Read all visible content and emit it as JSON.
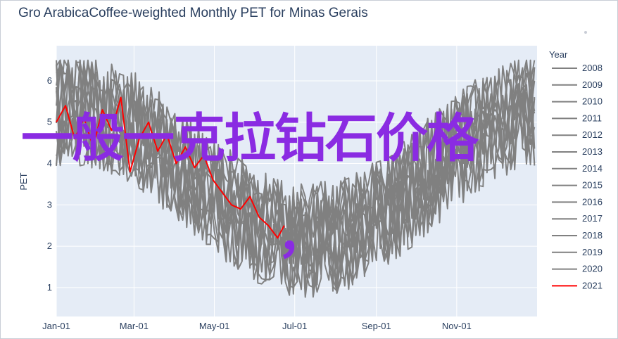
{
  "chart_data": {
    "type": "line",
    "title": "Gro ArabicaCoffee-weighted Monthly PET for Minas Gerais",
    "xlabel": "",
    "ylabel": "PET",
    "x_tick_labels": [
      "Jan-01",
      "Mar-01",
      "May-01",
      "Jul-01",
      "Sep-01",
      "Nov-01"
    ],
    "y_ticks": [
      1,
      2,
      3,
      4,
      5,
      6
    ],
    "ylim": [
      0.3,
      6.85
    ],
    "xlim_days": [
      0,
      365
    ],
    "legend_title": "Year",
    "legend_placement": "right",
    "series": [
      {
        "name": "2008",
        "color": "#808080"
      },
      {
        "name": "2009",
        "color": "#808080"
      },
      {
        "name": "2010",
        "color": "#808080"
      },
      {
        "name": "2011",
        "color": "#808080"
      },
      {
        "name": "2012",
        "color": "#808080"
      },
      {
        "name": "2013",
        "color": "#808080"
      },
      {
        "name": "2014",
        "color": "#808080"
      },
      {
        "name": "2015",
        "color": "#808080"
      },
      {
        "name": "2016",
        "color": "#808080"
      },
      {
        "name": "2017",
        "color": "#808080"
      },
      {
        "name": "2018",
        "color": "#808080"
      },
      {
        "name": "2019",
        "color": "#808080"
      },
      {
        "name": "2020",
        "color": "#808080"
      },
      {
        "name": "2021",
        "color": "#ff0000"
      }
    ],
    "series_2021_points": [
      {
        "x": "Jan-01",
        "y": 5.0
      },
      {
        "x": "Jan-08",
        "y": 5.4
      },
      {
        "x": "Jan-15",
        "y": 4.6
      },
      {
        "x": "Jan-22",
        "y": 5.1
      },
      {
        "x": "Jan-29",
        "y": 4.4
      },
      {
        "x": "Feb-05",
        "y": 5.3
      },
      {
        "x": "Feb-12",
        "y": 4.8
      },
      {
        "x": "Feb-19",
        "y": 5.6
      },
      {
        "x": "Feb-26",
        "y": 3.8
      },
      {
        "x": "Mar-05",
        "y": 4.6
      },
      {
        "x": "Mar-12",
        "y": 5.0
      },
      {
        "x": "Mar-19",
        "y": 4.3
      },
      {
        "x": "Mar-26",
        "y": 4.7
      },
      {
        "x": "Apr-02",
        "y": 4.0
      },
      {
        "x": "Apr-09",
        "y": 4.4
      },
      {
        "x": "Apr-16",
        "y": 3.9
      },
      {
        "x": "Apr-23",
        "y": 4.2
      },
      {
        "x": "Apr-30",
        "y": 3.6
      },
      {
        "x": "May-07",
        "y": 3.3
      },
      {
        "x": "May-14",
        "y": 3.0
      },
      {
        "x": "May-21",
        "y": 2.9
      },
      {
        "x": "May-28",
        "y": 3.2
      },
      {
        "x": "Jun-04",
        "y": 2.7
      },
      {
        "x": "Jun-11",
        "y": 2.5
      },
      {
        "x": "Jun-18",
        "y": 2.2
      },
      {
        "x": "Jun-23",
        "y": 2.5
      }
    ]
  },
  "overlay": {
    "text": "一般一克拉钻石价格",
    "comma": "，"
  },
  "ui": {
    "year_legend_title": "Year"
  }
}
